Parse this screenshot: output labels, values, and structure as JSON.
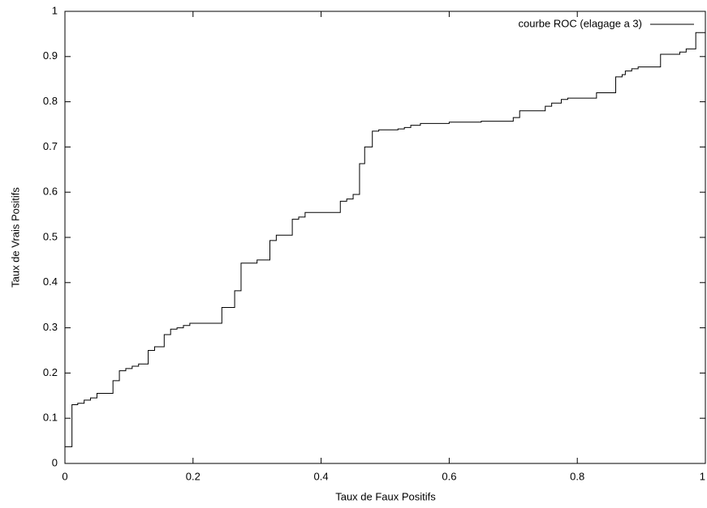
{
  "chart_data": {
    "type": "step",
    "xlabel": "Taux de Faux Positifs",
    "ylabel": "Taux de Vrais Positifs",
    "xlim": [
      0,
      1
    ],
    "ylim": [
      0,
      1
    ],
    "xticks": [
      0,
      0.2,
      0.4,
      0.6,
      0.8,
      1
    ],
    "yticks": [
      0,
      0.1,
      0.2,
      0.3,
      0.4,
      0.5,
      0.6,
      0.7,
      0.8,
      0.9,
      1
    ],
    "legend": "top-right",
    "x": [
      0,
      0.011,
      0.02,
      0.03,
      0.04,
      0.05,
      0.075,
      0.085,
      0.095,
      0.105,
      0.115,
      0.13,
      0.14,
      0.155,
      0.165,
      0.175,
      0.185,
      0.195,
      0.245,
      0.265,
      0.275,
      0.3,
      0.32,
      0.33,
      0.355,
      0.365,
      0.375,
      0.43,
      0.44,
      0.45,
      0.46,
      0.468,
      0.48,
      0.49,
      0.52,
      0.53,
      0.54,
      0.555,
      0.6,
      0.65,
      0.7,
      0.71,
      0.75,
      0.76,
      0.775,
      0.785,
      0.83,
      0.86,
      0.87,
      0.875,
      0.885,
      0.895,
      0.93,
      0.96,
      0.97,
      0.985,
      1
    ],
    "series": [
      {
        "name": "courbe ROC (elagage a 3)",
        "color": "#000000",
        "values": [
          0.037,
          0.13,
          0.133,
          0.14,
          0.145,
          0.155,
          0.183,
          0.205,
          0.21,
          0.215,
          0.22,
          0.25,
          0.258,
          0.285,
          0.297,
          0.3,
          0.305,
          0.31,
          0.345,
          0.382,
          0.443,
          0.45,
          0.493,
          0.505,
          0.54,
          0.545,
          0.555,
          0.58,
          0.585,
          0.595,
          0.663,
          0.7,
          0.735,
          0.738,
          0.74,
          0.743,
          0.748,
          0.752,
          0.755,
          0.757,
          0.765,
          0.78,
          0.79,
          0.797,
          0.805,
          0.808,
          0.82,
          0.855,
          0.86,
          0.868,
          0.873,
          0.877,
          0.905,
          0.91,
          0.917,
          0.953,
          0.953
        ]
      }
    ]
  }
}
